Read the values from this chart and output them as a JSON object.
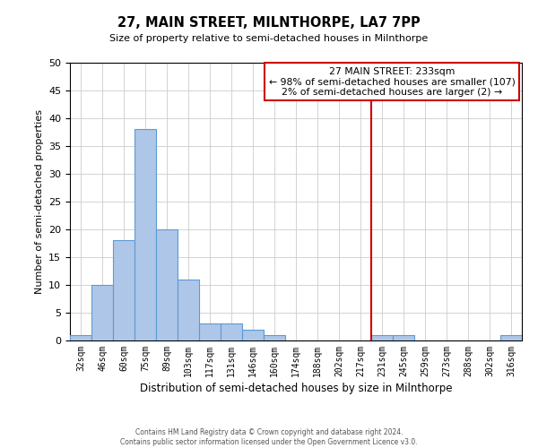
{
  "title": "27, MAIN STREET, MILNTHORPE, LA7 7PP",
  "subtitle": "Size of property relative to semi-detached houses in Milnthorpe",
  "xlabel": "Distribution of semi-detached houses by size in Milnthorpe",
  "ylabel": "Number of semi-detached properties",
  "bin_labels": [
    "32sqm",
    "46sqm",
    "60sqm",
    "75sqm",
    "89sqm",
    "103sqm",
    "117sqm",
    "131sqm",
    "146sqm",
    "160sqm",
    "174sqm",
    "188sqm",
    "202sqm",
    "217sqm",
    "231sqm",
    "245sqm",
    "259sqm",
    "273sqm",
    "288sqm",
    "302sqm",
    "316sqm"
  ],
  "bar_values": [
    1,
    10,
    18,
    38,
    20,
    11,
    3,
    3,
    2,
    1,
    0,
    0,
    0,
    0,
    1,
    1,
    0,
    0,
    0,
    0,
    1
  ],
  "bar_color": "#aec6e8",
  "bar_edge_color": "#5b9bd5",
  "ylim": [
    0,
    50
  ],
  "yticks": [
    0,
    5,
    10,
    15,
    20,
    25,
    30,
    35,
    40,
    45,
    50
  ],
  "property_line_x": 14,
  "property_label": "27 MAIN STREET: 233sqm",
  "annotation_line1": "← 98% of semi-detached houses are smaller (107)",
  "annotation_line2": "2% of semi-detached houses are larger (2) →",
  "vline_color": "#cc0000",
  "annotation_box_color": "#ffffff",
  "annotation_box_edge": "#cc0000",
  "footer1": "Contains HM Land Registry data © Crown copyright and database right 2024.",
  "footer2": "Contains public sector information licensed under the Open Government Licence v3.0."
}
